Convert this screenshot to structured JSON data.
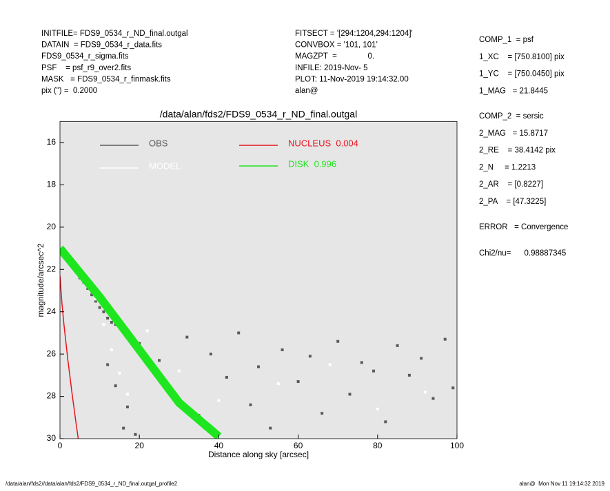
{
  "header": {
    "left": [
      "INITFILE= FDS9_0534_r_ND_final.outgal",
      "DATAIN  = FDS9_0534_r_data.fits",
      "FDS9_0534_r_sigma.fits",
      "PSF    = psf_r9_over2.fits",
      "MASK   = FDS9_0534_r_finmask.fits",
      "pix (\") =  0.2000"
    ],
    "middle": [
      "FITSECT = '[294:1204,294:1204]'",
      "CONVBOX = '101, 101'",
      "MAGZPT  =              0.",
      "INFILE: 2019-Nov- 5",
      "PLOT: 11-Nov-2019 19:14:32.00",
      "alan@"
    ]
  },
  "side_panel": [
    [
      "COMP_1  = psf",
      "1_XC    = [750.8100] pix",
      "1_YC    = [750.0450] pix",
      "1_MAG   = 21.8445"
    ],
    [
      "COMP_2  = sersic",
      "2_MAG   = 15.8717",
      "2_RE    = 38.4142 pix",
      "2_N     = 1.2213",
      "2_AR    = [0.8227]",
      "2_PA    = [47.3225]"
    ],
    [
      "ERROR   = Convergence"
    ],
    [
      "Chi2/nu=      0.98887345"
    ]
  ],
  "footer": {
    "left": "/data/alan/fds2//data/alan/fds2/FDS9_0534_r_ND_final.outgal_profile2",
    "right": "alan@  Mon Nov 11 19:14:32 2019"
  },
  "chart_data": {
    "type": "scatter",
    "title": "/data/alan/fds2/FDS9_0534_r_ND_final.outgal",
    "x_label": "Distance along sky [arcsec]",
    "y_label": "magnitude/arcsec^2",
    "xlim": [
      0,
      100
    ],
    "xticks": [
      0,
      20,
      40,
      60,
      80,
      100
    ],
    "ylim": [
      30,
      15
    ],
    "yticks": [
      16,
      18,
      20,
      22,
      24,
      26,
      28,
      30
    ],
    "background": "#e6e6e6",
    "series": [
      {
        "name": "OBS",
        "kind": "points",
        "color": "#5a5a5a",
        "x": [
          1,
          2,
          3,
          4,
          5,
          6,
          7,
          8,
          9,
          10,
          11,
          12,
          13,
          14,
          16,
          17,
          16,
          19,
          14,
          12,
          20,
          25,
          28,
          32,
          35,
          38,
          42,
          45,
          48,
          50,
          53,
          56,
          60,
          63,
          66,
          70,
          73,
          76,
          79,
          82,
          85,
          88,
          91,
          94,
          97,
          99
        ],
        "values": [
          21.2,
          21.5,
          21.8,
          22.1,
          22.4,
          22.6,
          22.9,
          23.2,
          23.5,
          23.8,
          24.0,
          24.3,
          24.5,
          24.6,
          24.8,
          28.5,
          29.5,
          29.8,
          27.5,
          26.5,
          25.5,
          26.3,
          27.8,
          25.2,
          28.9,
          26.0,
          27.1,
          25.0,
          28.4,
          26.6,
          29.5,
          25.8,
          27.3,
          26.1,
          28.8,
          25.4,
          27.9,
          26.4,
          26.8,
          29.2,
          25.6,
          27.0,
          26.2,
          28.1,
          25.3,
          27.6
        ]
      },
      {
        "name": "MODEL",
        "kind": "points",
        "color": "#ffffff",
        "x": [
          1,
          3,
          5,
          7,
          9,
          11,
          13,
          15,
          17,
          22,
          30,
          40,
          55,
          68,
          80,
          92
        ],
        "values": [
          21.1,
          21.7,
          22.3,
          22.8,
          23.4,
          24.6,
          25.8,
          26.9,
          27.9,
          24.9,
          26.8,
          28.2,
          27.4,
          26.5,
          28.6,
          27.8
        ]
      },
      {
        "name": "NUCLEUS  0.004",
        "kind": "line",
        "color": "#e8141c",
        "x": [
          0,
          0.5,
          1,
          2,
          3,
          4,
          4.6
        ],
        "values": [
          22.3,
          23.6,
          24.6,
          26.3,
          27.8,
          29.2,
          30
        ]
      },
      {
        "name": "DISK  0.996",
        "kind": "band",
        "color": "#1ee61e",
        "x": [
          0,
          10,
          20,
          30,
          40
        ],
        "values": [
          21,
          23.3,
          25.8,
          28.3,
          29.9
        ]
      }
    ]
  }
}
